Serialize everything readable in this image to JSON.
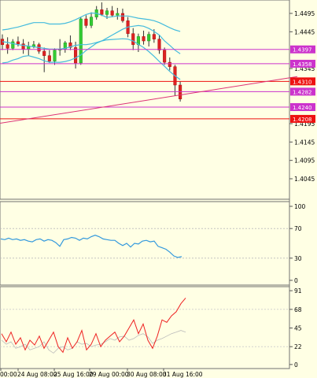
{
  "chart_data": [
    {
      "panel": "price",
      "type": "candlestick",
      "y_ticks": [
        "1.4495",
        "1.4445",
        "1.4345",
        "1.4195",
        "1.4145",
        "1.4095",
        "1.4045"
      ],
      "ylim": [
        1.4015,
        1.4545
      ],
      "tag_labels": [
        {
          "value": 1.4397,
          "text": "1.4397",
          "color": "#cc33cc"
        },
        {
          "value": 1.4358,
          "text": "1.4358",
          "color": "#cc33cc"
        },
        {
          "value": 1.431,
          "text": "1.4310",
          "color": "#ee1111"
        },
        {
          "value": 1.4282,
          "text": "1.4282",
          "color": "#cc33cc"
        },
        {
          "value": 1.424,
          "text": "1.4240",
          "color": "#cc33cc"
        },
        {
          "value": 1.4208,
          "text": "1.4208",
          "color": "#ee1111"
        }
      ],
      "trendline": {
        "from": [
          0,
          1.4196
        ],
        "to": [
          378,
          1.4323
        ],
        "color": "#dd3377"
      },
      "candles": [
        [
          1.4425,
          1.4438,
          1.4395,
          1.441
        ],
        [
          1.441,
          1.443,
          1.4385,
          1.44
        ],
        [
          1.44,
          1.4425,
          1.4395,
          1.4418
        ],
        [
          1.4418,
          1.4432,
          1.4405,
          1.4412
        ],
        [
          1.4412,
          1.4425,
          1.4385,
          1.4398
        ],
        [
          1.4398,
          1.4418,
          1.438,
          1.4405
        ],
        [
          1.4405,
          1.442,
          1.44,
          1.441
        ],
        [
          1.441,
          1.4415,
          1.4385,
          1.4392
        ],
        [
          1.4392,
          1.4402,
          1.4335,
          1.438
        ],
        [
          1.438,
          1.4395,
          1.436,
          1.4365
        ],
        [
          1.4365,
          1.44,
          1.4355,
          1.4395
        ],
        [
          1.4395,
          1.4425,
          1.438,
          1.4398
        ],
        [
          1.4398,
          1.442,
          1.4388,
          1.4415
        ],
        [
          1.4415,
          1.4435,
          1.4395,
          1.4402
        ],
        [
          1.4402,
          1.4418,
          1.4345,
          1.436
        ],
        [
          1.436,
          1.4485,
          1.4355,
          1.448
        ],
        [
          1.448,
          1.449,
          1.4455,
          1.4462
        ],
        [
          1.4462,
          1.4498,
          1.4455,
          1.4485
        ],
        [
          1.4485,
          1.4515,
          1.4478,
          1.4505
        ],
        [
          1.4505,
          1.4525,
          1.4488,
          1.4492
        ],
        [
          1.4492,
          1.451,
          1.448,
          1.4502
        ],
        [
          1.4502,
          1.4515,
          1.4485,
          1.449
        ],
        [
          1.449,
          1.451,
          1.4478,
          1.4495
        ],
        [
          1.4495,
          1.4508,
          1.447,
          1.4475
        ],
        [
          1.4475,
          1.4485,
          1.443,
          1.444
        ],
        [
          1.444,
          1.4455,
          1.4395,
          1.441
        ],
        [
          1.441,
          1.444,
          1.439,
          1.4432
        ],
        [
          1.4432,
          1.4448,
          1.441,
          1.442
        ],
        [
          1.442,
          1.4445,
          1.4405,
          1.4438
        ],
        [
          1.4438,
          1.4452,
          1.4415,
          1.4425
        ],
        [
          1.4425,
          1.4435,
          1.4385,
          1.4395
        ],
        [
          1.4395,
          1.4402,
          1.4355,
          1.4362
        ],
        [
          1.4362,
          1.4375,
          1.434,
          1.435
        ],
        [
          1.435,
          1.4355,
          1.427,
          1.43
        ],
        [
          1.43,
          1.431,
          1.4255,
          1.4262
        ]
      ],
      "bands": {
        "upper": [
          1.445,
          1.4452,
          1.4455,
          1.4458,
          1.4462,
          1.4466,
          1.447,
          1.447,
          1.447,
          1.4466,
          1.4466,
          1.4466,
          1.4468,
          1.4472,
          1.4478,
          1.4485,
          1.4492,
          1.4496,
          1.4495,
          1.449,
          1.4484,
          1.4486,
          1.4488,
          1.4488,
          1.4488,
          1.4485,
          1.4482,
          1.448,
          1.4478,
          1.4475,
          1.447,
          1.4463,
          1.4456,
          1.445,
          1.4446
        ],
        "middle": [
          1.4418,
          1.4416,
          1.4413,
          1.441,
          1.4408,
          1.4406,
          1.4404,
          1.4402,
          1.44,
          1.4398,
          1.4398,
          1.4398,
          1.44,
          1.4404,
          1.4408,
          1.441,
          1.441,
          1.4412,
          1.4416,
          1.442,
          1.4428,
          1.4436,
          1.4444,
          1.4452,
          1.4458,
          1.446,
          1.4462,
          1.446,
          1.4454,
          1.4446,
          1.4436,
          1.442,
          1.4408,
          1.4395,
          1.4385
        ],
        "lower": [
          1.436,
          1.4362,
          1.4368,
          1.4372,
          1.4378,
          1.438,
          1.4376,
          1.4372,
          1.4366,
          1.4362,
          1.4362,
          1.4362,
          1.4364,
          1.4368,
          1.4374,
          1.4382,
          1.4394,
          1.4404,
          1.4414,
          1.442,
          1.4423,
          1.4424,
          1.4425,
          1.4426,
          1.4425,
          1.442,
          1.4411,
          1.4402,
          1.4391,
          1.4378,
          1.4364,
          1.4351,
          1.4337,
          1.4325,
          1.4315
        ]
      }
    },
    {
      "panel": "rsi",
      "type": "line",
      "y_ticks": [
        "100",
        "70",
        "30",
        "0"
      ],
      "ylim": [
        0,
        100
      ],
      "color": "#3399dd",
      "values": [
        56,
        55,
        57,
        55,
        56,
        54,
        55,
        53,
        52,
        55,
        56,
        53,
        55,
        54,
        51,
        46,
        55,
        56,
        58,
        57,
        54,
        57,
        56,
        59,
        61,
        59,
        56,
        55,
        54,
        54,
        50,
        47,
        50,
        45,
        50,
        49,
        53,
        54,
        52,
        53,
        46,
        44,
        42,
        38,
        33,
        31,
        32
      ]
    },
    {
      "panel": "stochastic",
      "type": "line",
      "y_ticks": [
        "91",
        "68",
        "45",
        "22",
        "0"
      ],
      "ylim": [
        -5,
        96
      ],
      "main": {
        "color": "#ee2222",
        "values": [
          38,
          28,
          40,
          25,
          33,
          18,
          30,
          24,
          35,
          20,
          30,
          40,
          22,
          15,
          33,
          20,
          28,
          42,
          18,
          25,
          38,
          22,
          30,
          35,
          40,
          28,
          35,
          45,
          55,
          38,
          50,
          30,
          20,
          35,
          55,
          52,
          60,
          65,
          75,
          82
        ]
      },
      "signal": {
        "color": "#bbbbbb",
        "values": [
          30,
          25,
          28,
          20,
          22,
          25,
          18,
          20,
          22,
          28,
          18,
          14,
          20,
          22,
          18,
          20,
          28,
          25,
          26,
          22,
          24,
          25,
          28,
          32,
          30,
          34,
          35,
          30,
          32,
          36,
          38,
          34,
          26,
          30,
          32,
          35,
          38,
          40,
          42,
          40
        ]
      }
    }
  ],
  "x_labels": [
    "00:00",
    "24 Aug 08:00",
    "25 Aug 16:00",
    "29 Aug 00:00",
    "30 Aug 08:00",
    "31 Aug 16:00"
  ]
}
